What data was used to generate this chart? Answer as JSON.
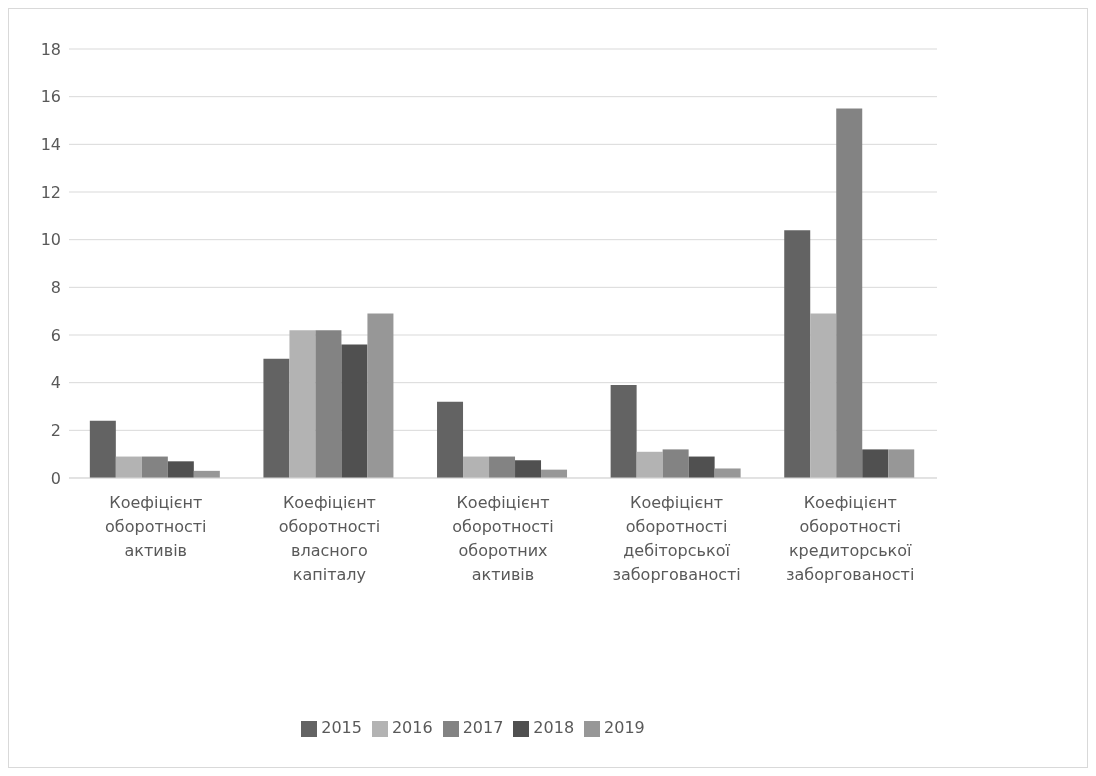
{
  "chart_data": {
    "type": "bar",
    "categories": [
      "Коефіцієнт оборотності активів",
      "Коефіцієнт оборотності власного капіталу",
      "Коефіцієнт оборотності оборотних активів",
      "Коефіцієнт оборотності дебіторської заборгованості",
      "Коефіцієнт оборотності кредиторської заборгованості"
    ],
    "series": [
      {
        "name": "2015",
        "color": "#636363",
        "values": [
          2.4,
          5.0,
          3.2,
          3.9,
          10.4
        ]
      },
      {
        "name": "2016",
        "color": "#b3b3b3",
        "values": [
          0.9,
          6.2,
          0.9,
          1.1,
          6.9
        ]
      },
      {
        "name": "2017",
        "color": "#838383",
        "values": [
          0.9,
          6.2,
          0.9,
          1.2,
          15.5
        ]
      },
      {
        "name": "2018",
        "color": "#505050",
        "values": [
          0.7,
          5.6,
          0.75,
          0.9,
          1.2
        ]
      },
      {
        "name": "2019",
        "color": "#979797",
        "values": [
          0.3,
          6.9,
          0.35,
          0.4,
          1.2
        ]
      }
    ],
    "ylim": [
      0,
      18
    ],
    "yticks": [
      0,
      2,
      4,
      6,
      8,
      10,
      12,
      14,
      16,
      18
    ],
    "grid": "y",
    "legend": "bottom"
  }
}
